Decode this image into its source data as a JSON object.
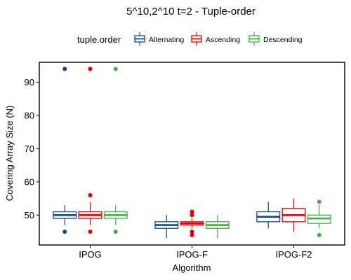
{
  "chart_data": {
    "type": "boxplot",
    "title": "5^10,2^10 t=2 - Tuple-order",
    "xlabel": "Algorithm",
    "ylabel": "Covering Array Size (N)",
    "ylim": [
      41,
      96
    ],
    "yticks": [
      50,
      60,
      70,
      80,
      90
    ],
    "categories": [
      "IPOG",
      "IPOG-F",
      "IPOG-F2"
    ],
    "legend": {
      "title": "tuple.order",
      "position": "top"
    },
    "grid": false,
    "series": [
      {
        "name": "Alternating",
        "color": "#0d4a8f",
        "boxes": [
          {
            "whisker_low": 47,
            "q1": 49,
            "median": 50,
            "q3": 51,
            "whisker_high": 53,
            "outliers": [
              45,
              94
            ]
          },
          {
            "whisker_low": 43,
            "q1": 46,
            "median": 47,
            "q3": 48,
            "whisker_high": 50,
            "outliers": []
          },
          {
            "whisker_low": 46,
            "q1": 48,
            "median": 49.5,
            "q3": 51,
            "whisker_high": 54,
            "outliers": []
          }
        ]
      },
      {
        "name": "Ascending",
        "color": "#e00000",
        "boxes": [
          {
            "whisker_low": 47,
            "q1": 49,
            "median": 50,
            "q3": 51,
            "whisker_high": 54,
            "outliers": [
              45,
              56,
              94
            ]
          },
          {
            "whisker_low": 46,
            "q1": 47,
            "median": 47.5,
            "q3": 48,
            "whisker_high": 49,
            "outliers": [
              44,
              45,
              50,
              51
            ]
          },
          {
            "whisker_low": 45,
            "q1": 48,
            "median": 50,
            "q3": 52,
            "whisker_high": 55,
            "outliers": []
          }
        ]
      },
      {
        "name": "Descending",
        "color": "#3fb03f",
        "boxes": [
          {
            "whisker_low": 47,
            "q1": 49,
            "median": 50,
            "q3": 51,
            "whisker_high": 53,
            "outliers": [
              45,
              94
            ]
          },
          {
            "whisker_low": 43,
            "q1": 46,
            "median": 47,
            "q3": 48,
            "whisker_high": 50,
            "outliers": []
          },
          {
            "whisker_low": 46,
            "q1": 47.5,
            "median": 49,
            "q3": 50,
            "whisker_high": 53,
            "outliers": [
              44,
              54
            ]
          }
        ]
      }
    ]
  }
}
